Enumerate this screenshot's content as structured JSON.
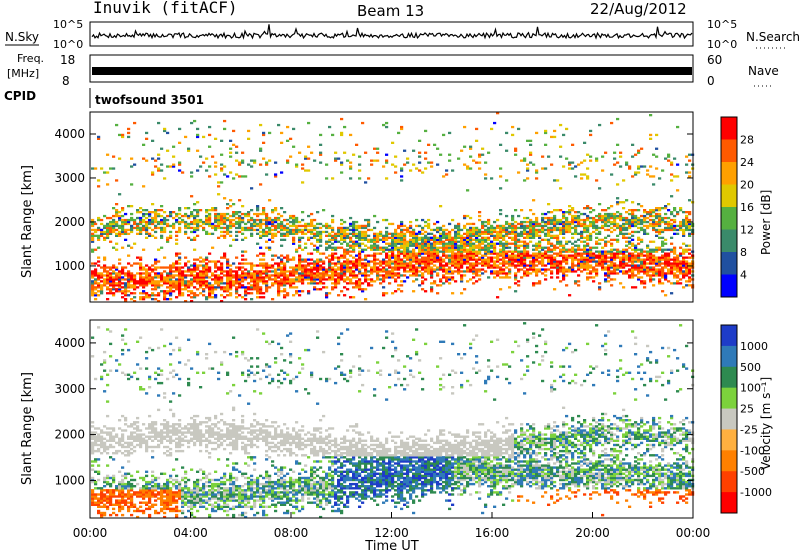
{
  "header": {
    "station": "Inuvik (fitACF)",
    "beam": "Beam 13",
    "date": "22/Aug/2012"
  },
  "strips": {
    "nsky": {
      "label": "N.Sky",
      "ticks": [
        "10^5",
        "10^0"
      ],
      "right_label": "N.Search",
      "right_ticks": [
        "10^5",
        "10^0"
      ]
    },
    "freq": {
      "label_line1": "Freq.",
      "label_line2": "[MHz]",
      "ticks": [
        "18",
        "8"
      ],
      "right_label": "Nave",
      "right_ticks": [
        "60",
        "0"
      ]
    },
    "cpid": {
      "label": "CPID",
      "value": "twofsound 3501"
    }
  },
  "chart_data": [
    {
      "type": "heatmap",
      "name": "power",
      "ylabel": "Slant Range [km]",
      "xlabel": "",
      "ylim": [
        180,
        4500
      ],
      "yticks": [
        1000,
        2000,
        3000,
        4000
      ],
      "colorbar": {
        "label": "Power [dB]",
        "ticks": [
          "28",
          "24",
          "20",
          "16",
          "12",
          "8",
          "4"
        ],
        "palette": [
          "#ff0000",
          "#ff5a00",
          "#ffa000",
          "#e0c800",
          "#55b040",
          "#3a8a6a",
          "#2050a0",
          "#0000ff"
        ]
      }
    },
    {
      "type": "heatmap",
      "name": "velocity",
      "ylabel": "Slant Range [km]",
      "xlabel": "Time UT",
      "ylim": [
        180,
        4500
      ],
      "yticks": [
        1000,
        2000,
        3000,
        4000
      ],
      "xticks": [
        "00:00",
        "04:00",
        "08:00",
        "12:00",
        "16:00",
        "20:00",
        "00:00"
      ],
      "colorbar": {
        "label": "Velocity [m s⁻¹]",
        "ticks": [
          "1000",
          "500",
          "100",
          "25",
          "-25",
          "-100",
          "-500",
          "-1000"
        ],
        "palette": [
          "#1e3cc8",
          "#2f7ab8",
          "#2e8a50",
          "#7cd23c",
          "#c8c8c0",
          "#ffb040",
          "#ff8000",
          "#ff4000",
          "#ff0000"
        ]
      }
    }
  ]
}
